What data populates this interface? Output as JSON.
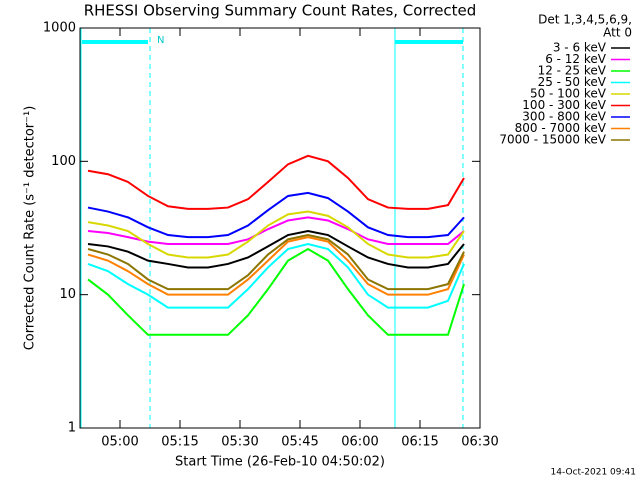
{
  "chart_data": {
    "type": "line",
    "title": "RHESSI Observing Summary Count Rates, Corrected",
    "xlabel": "Start Time (26-Feb-10 04:50:02)",
    "ylabel": "Corrected Count Rate (s⁻¹ detector⁻¹)",
    "legend_title": [
      "Det 1,3,4,5,6,9,",
      "Att 0"
    ],
    "timestamp": "14-Oct-2021 09:41",
    "night_label": "N",
    "log_y": true,
    "legend": "outside-right",
    "xlim": [
      "04:50",
      "06:30"
    ],
    "xticks": [
      "05:00",
      "05:15",
      "05:30",
      "05:45",
      "06:00",
      "06:15",
      "06:30"
    ],
    "ylim": [
      1,
      1000
    ],
    "yticks": [
      1,
      10,
      100,
      1000
    ],
    "x": [
      "04:52",
      "04:57",
      "05:02",
      "05:07",
      "05:12",
      "05:17",
      "05:22",
      "05:27",
      "05:32",
      "05:37",
      "05:42",
      "05:47",
      "05:52",
      "05:57",
      "06:02",
      "06:07",
      "06:12",
      "06:17",
      "06:22",
      "06:26"
    ],
    "series": [
      {
        "name": "3 - 6 keV",
        "color": "#000000",
        "values": [
          24,
          23,
          21,
          18,
          17,
          16,
          16,
          17,
          19,
          23,
          28,
          30,
          28,
          23,
          19,
          17,
          16,
          16,
          17,
          24
        ]
      },
      {
        "name": "6 - 12 keV",
        "color": "#ff00ff",
        "values": [
          30,
          29,
          27,
          25,
          24,
          24,
          24,
          24,
          26,
          31,
          36,
          38,
          36,
          31,
          26,
          24,
          24,
          24,
          24,
          30
        ]
      },
      {
        "name": "12 - 25 keV",
        "color": "#00ff00",
        "values": [
          13,
          10,
          7,
          5,
          5,
          5,
          5,
          5,
          7,
          11,
          18,
          22,
          18,
          11,
          7,
          5,
          5,
          5,
          5,
          12
        ]
      },
      {
        "name": "25 - 50 keV",
        "color": "#00ffff",
        "values": [
          17,
          15,
          12,
          10,
          8,
          8,
          8,
          8,
          11,
          16,
          22,
          24,
          22,
          16,
          10,
          8,
          8,
          8,
          9,
          17
        ]
      },
      {
        "name": "50 - 100 keV",
        "color": "#d8d800",
        "values": [
          35,
          33,
          30,
          24,
          20,
          19,
          19,
          20,
          25,
          33,
          40,
          42,
          39,
          32,
          24,
          20,
          19,
          19,
          20,
          30
        ]
      },
      {
        "name": "100 - 300 keV",
        "color": "#ff0000",
        "values": [
          85,
          80,
          70,
          55,
          46,
          44,
          44,
          45,
          52,
          70,
          95,
          110,
          100,
          75,
          52,
          45,
          44,
          44,
          47,
          75
        ]
      },
      {
        "name": "300 - 800 keV",
        "color": "#0000ff",
        "values": [
          45,
          42,
          38,
          32,
          28,
          27,
          27,
          28,
          33,
          43,
          55,
          58,
          53,
          42,
          32,
          28,
          27,
          27,
          28,
          38
        ]
      },
      {
        "name": "800 - 7000 keV",
        "color": "#ff8000",
        "values": [
          20,
          18,
          15,
          12,
          10,
          10,
          10,
          10,
          13,
          18,
          25,
          27,
          25,
          18,
          12,
          10,
          10,
          10,
          11,
          20
        ]
      },
      {
        "name": "7000 - 15000 keV",
        "color": "#8b7500",
        "values": [
          22,
          20,
          17,
          13,
          11,
          11,
          11,
          11,
          14,
          20,
          26,
          28,
          26,
          20,
          13,
          11,
          11,
          11,
          12,
          21
        ]
      }
    ]
  }
}
